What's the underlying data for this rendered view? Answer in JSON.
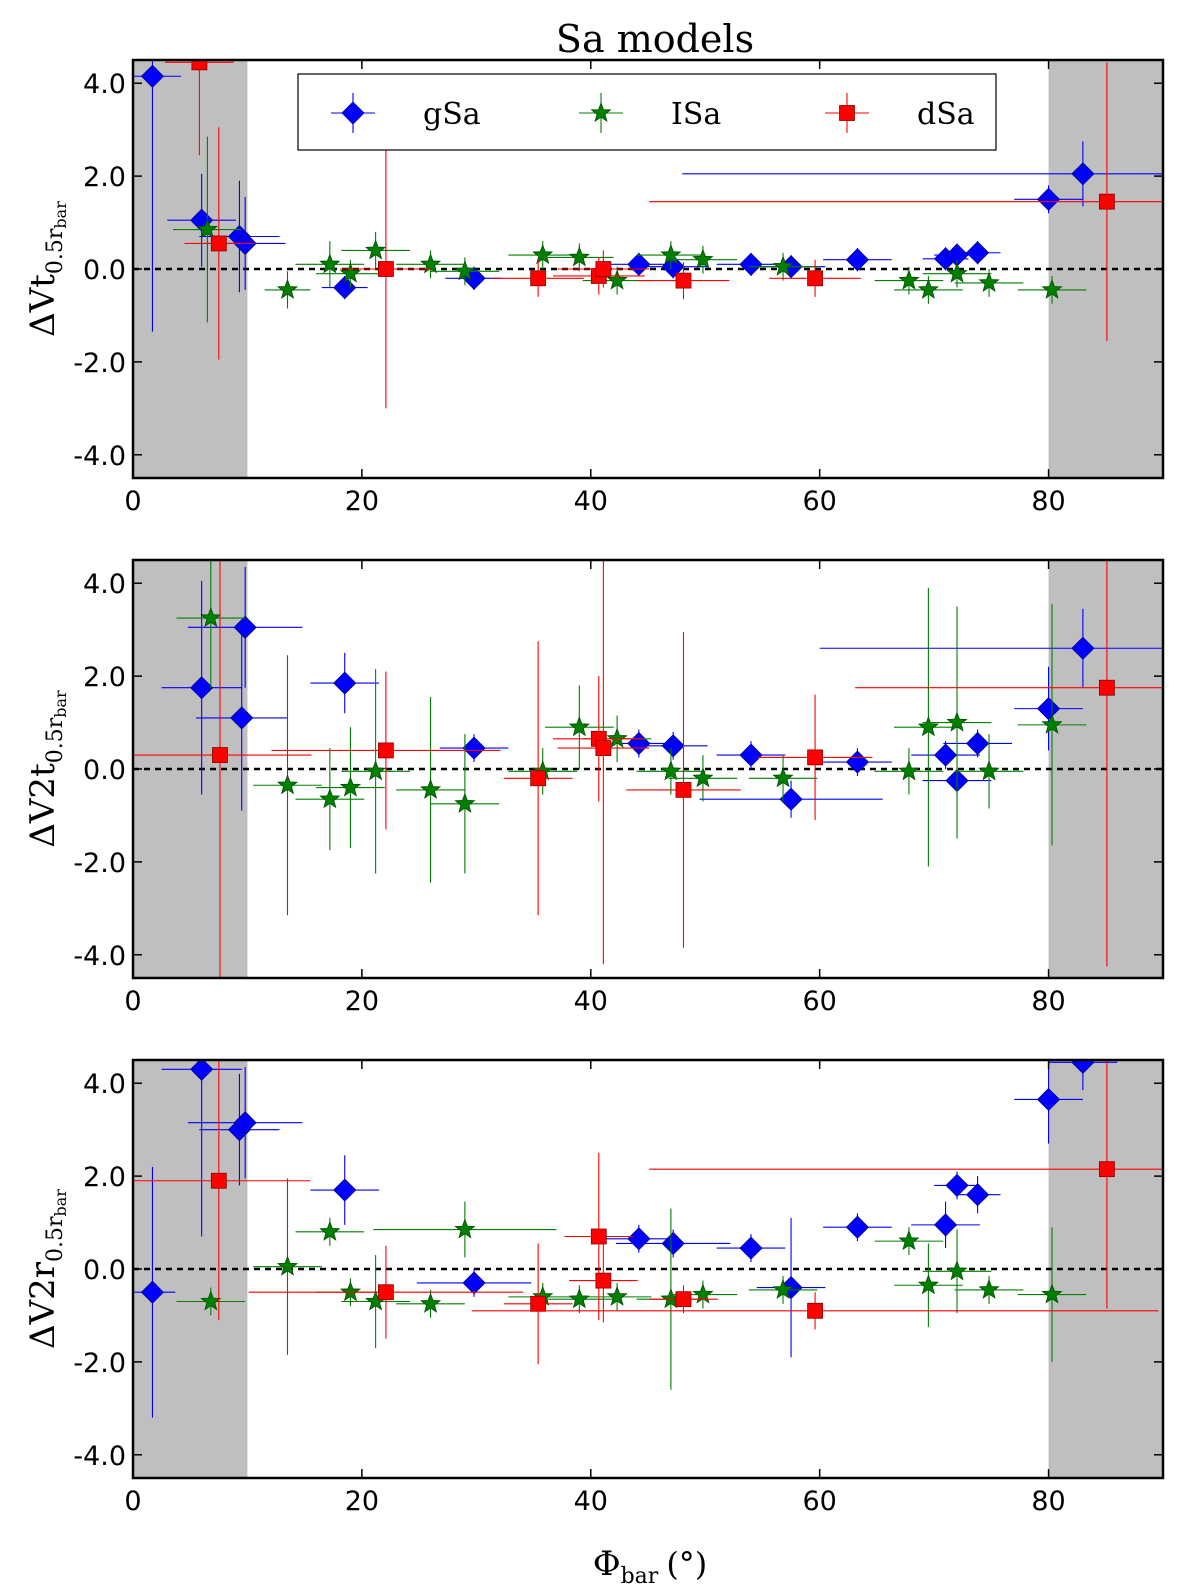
{
  "chart_data": {
    "type": "scatter",
    "title": "Sa models",
    "xlabel": "Φbar (°)",
    "xlabel_main": "Φ",
    "xlabel_sub": "bar",
    "xlabel_unit": "(°)",
    "xlim": [
      0,
      90
    ],
    "ylim": [
      -4.5,
      4.5
    ],
    "xticks": [
      0,
      20,
      40,
      60,
      80
    ],
    "yticks": [
      -4.0,
      -2.0,
      0.0,
      2.0,
      4.0
    ],
    "xtick_labels": [
      "0",
      "20",
      "40",
      "60",
      "80"
    ],
    "ytick_labels": [
      "-4.0",
      "-2.0",
      "0.0",
      "2.0",
      "4.0"
    ],
    "shaded_regions": [
      [
        0,
        10
      ],
      [
        80,
        90
      ]
    ],
    "reference_line_y": 0,
    "legend": {
      "position": "top",
      "entries": [
        {
          "label": "gSa",
          "marker": "diamond",
          "color": "#0000ff"
        },
        {
          "label": "ISa",
          "marker": "star",
          "color": "#007f00"
        },
        {
          "label": "dSa",
          "marker": "square",
          "color": "#ff0000"
        }
      ]
    },
    "panels": [
      {
        "ylabel": "ΔVt0.5rbar",
        "ylabel_main": "ΔVt",
        "ylabel_sub": "0.5r",
        "ylabel_subsub": "bar",
        "series": [
          {
            "name": "gSa",
            "points": [
              [
                1.7,
                4.15,
                2.5,
                5.5
              ],
              [
                6,
                1.05,
                3,
                1
              ],
              [
                9.3,
                0.7,
                3.5,
                1.2
              ],
              [
                9.8,
                0.55,
                3.5,
                1
              ],
              [
                18.5,
                -0.4,
                2,
                0.25
              ],
              [
                29.8,
                -0.2,
                2.5,
                0.25
              ],
              [
                44.2,
                0.1,
                3,
                0.25
              ],
              [
                47.2,
                0.05,
                3,
                0.25
              ],
              [
                54,
                0.1,
                3,
                0.25
              ],
              [
                57.5,
                0.05,
                3,
                0.25
              ],
              [
                63.3,
                0.2,
                3,
                0.25
              ],
              [
                71,
                0.22,
                2,
                0.25
              ],
              [
                72,
                0.3,
                2,
                0.25
              ],
              [
                73.8,
                0.35,
                2,
                0.25
              ],
              [
                80,
                1.5,
                3,
                0.3
              ],
              [
                83,
                2.05,
                35,
                0.7
              ]
            ]
          },
          {
            "name": "ISa",
            "points": [
              [
                6.5,
                0.85,
                3,
                2
              ],
              [
                13.5,
                -0.45,
                2,
                0.4
              ],
              [
                17.2,
                0.1,
                3,
                0.5
              ],
              [
                19,
                -0.1,
                3,
                0.3
              ],
              [
                21.2,
                0.4,
                3,
                0.4
              ],
              [
                26,
                0.1,
                3,
                0.3
              ],
              [
                29,
                -0.05,
                3,
                0.3
              ],
              [
                35.8,
                0.3,
                3,
                0.3
              ],
              [
                39,
                0.25,
                3,
                0.3
              ],
              [
                42.3,
                -0.25,
                3,
                0.3
              ],
              [
                47,
                0.3,
                3,
                0.3
              ],
              [
                49.8,
                0.2,
                3,
                0.3
              ],
              [
                56.8,
                0.05,
                3,
                0.3
              ],
              [
                67.8,
                -0.25,
                3,
                0.3
              ],
              [
                69.5,
                -0.45,
                3,
                0.3
              ],
              [
                72,
                -0.1,
                3,
                0.3
              ],
              [
                74.8,
                -0.3,
                3,
                0.3
              ],
              [
                80.3,
                -0.45,
                3,
                0.3
              ]
            ]
          },
          {
            "name": "dSa",
            "points": [
              [
                5.8,
                4.45,
                3,
                2
              ],
              [
                7.5,
                0.55,
                3,
                2.5
              ],
              [
                22.1,
                0,
                4,
                3
              ],
              [
                35.4,
                -0.2,
                4,
                0.4
              ],
              [
                40.7,
                -0.15,
                4,
                0.4
              ],
              [
                41.1,
                0,
                4,
                0.4
              ],
              [
                48.1,
                -0.25,
                4,
                0.4
              ],
              [
                59.6,
                -0.2,
                4,
                0.4
              ],
              [
                85.1,
                1.45,
                40,
                3
              ]
            ]
          }
        ]
      },
      {
        "ylabel": "ΔV2t0.5rbar",
        "ylabel_main": "ΔV2t",
        "ylabel_sub": "0.5r",
        "ylabel_subsub": "bar",
        "series": [
          {
            "name": "gSa",
            "points": [
              [
                6,
                1.75,
                3.5,
                2.3
              ],
              [
                9.5,
                1.1,
                4,
                2
              ],
              [
                9.8,
                3.05,
                5,
                1.3
              ],
              [
                18.5,
                1.85,
                3,
                0.65
              ],
              [
                29.8,
                0.45,
                3,
                0.3
              ],
              [
                44.2,
                0.55,
                3,
                0.3
              ],
              [
                47.2,
                0.5,
                3,
                0.3
              ],
              [
                54,
                0.3,
                3,
                0.3
              ],
              [
                57.5,
                -0.65,
                8,
                0.4
              ],
              [
                63.3,
                0.15,
                3,
                0.3
              ],
              [
                71,
                0.3,
                3,
                0.3
              ],
              [
                72,
                -0.25,
                3,
                0.3
              ],
              [
                73.8,
                0.55,
                3,
                0.3
              ],
              [
                80,
                1.3,
                3,
                0.9
              ],
              [
                83,
                2.6,
                23,
                0.85
              ]
            ]
          },
          {
            "name": "ISa",
            "points": [
              [
                6.8,
                3.25,
                3,
                1.5
              ],
              [
                13.5,
                -0.35,
                3,
                2.8
              ],
              [
                17.2,
                -0.65,
                3,
                1.1
              ],
              [
                19,
                -0.4,
                3,
                1.3
              ],
              [
                21.2,
                -0.05,
                3,
                2.2
              ],
              [
                26,
                -0.45,
                3,
                2
              ],
              [
                29,
                -0.75,
                3,
                1.5
              ],
              [
                35.8,
                -0.05,
                3,
                0.5
              ],
              [
                39,
                0.9,
                3,
                0.9
              ],
              [
                42.3,
                0.65,
                3,
                0.5
              ],
              [
                47,
                -0.05,
                3,
                0.5
              ],
              [
                49.8,
                -0.2,
                3,
                0.5
              ],
              [
                56.8,
                -0.2,
                3,
                0.5
              ],
              [
                67.8,
                -0.05,
                3,
                0.5
              ],
              [
                69.5,
                0.9,
                3,
                3
              ],
              [
                72,
                1,
                3,
                2.5
              ],
              [
                74.8,
                -0.05,
                3,
                0.8
              ],
              [
                80.3,
                0.95,
                3,
                2.6
              ]
            ]
          },
          {
            "name": "dSa",
            "points": [
              [
                7.6,
                0.3,
                8,
                8
              ],
              [
                22.1,
                0.4,
                10,
                1.7
              ],
              [
                35.4,
                -0.2,
                3,
                2.95
              ],
              [
                40.7,
                0.65,
                4,
                1.35
              ],
              [
                41.1,
                0.45,
                4,
                4.65
              ],
              [
                48.1,
                -0.45,
                5,
                3.4
              ],
              [
                59.6,
                0.25,
                5,
                1.35
              ],
              [
                85.1,
                1.75,
                22,
                6
              ]
            ]
          }
        ]
      },
      {
        "ylabel": "ΔV2r0.5rbar",
        "ylabel_main": "ΔV2r",
        "ylabel_sub": "0.5r",
        "ylabel_subsub": "bar",
        "series": [
          {
            "name": "gSa",
            "points": [
              [
                1.7,
                -0.5,
                2,
                2.7
              ],
              [
                6,
                4.3,
                3.5,
                3.6
              ],
              [
                9.3,
                3,
                3.5,
                1.2
              ],
              [
                9.8,
                3.15,
                5,
                1.2
              ],
              [
                18.5,
                1.7,
                3,
                0.75
              ],
              [
                29.8,
                -0.3,
                5,
                0.3
              ],
              [
                44.2,
                0.65,
                3,
                0.3
              ],
              [
                47.2,
                0.55,
                5,
                0.3
              ],
              [
                54,
                0.45,
                3,
                0.3
              ],
              [
                57.5,
                -0.4,
                3,
                1.5
              ],
              [
                63.3,
                0.9,
                3,
                0.3
              ],
              [
                71,
                0.95,
                3,
                0.5
              ],
              [
                72,
                1.8,
                2,
                0.3
              ],
              [
                73.8,
                1.6,
                2,
                0.4
              ],
              [
                80,
                3.65,
                3,
                0.95
              ],
              [
                83,
                4.45,
                3,
                0.6
              ]
            ]
          },
          {
            "name": "ISa",
            "points": [
              [
                6.8,
                -0.7,
                3,
                0.3
              ],
              [
                13.5,
                0.05,
                3,
                1.9
              ],
              [
                17.2,
                0.8,
                3,
                0.3
              ],
              [
                19,
                -0.5,
                3,
                0.3
              ],
              [
                21.2,
                -0.7,
                3,
                1
              ],
              [
                26,
                -0.75,
                3,
                0.3
              ],
              [
                29,
                0.85,
                8,
                0.6
              ],
              [
                35.8,
                -0.6,
                3,
                0.3
              ],
              [
                39,
                -0.65,
                3,
                0.3
              ],
              [
                42.3,
                -0.6,
                3,
                0.3
              ],
              [
                47,
                -0.65,
                3,
                1.95
              ],
              [
                49.8,
                -0.55,
                3,
                0.3
              ],
              [
                56.8,
                -0.45,
                3,
                0.3
              ],
              [
                67.8,
                0.6,
                3,
                0.3
              ],
              [
                69.5,
                -0.35,
                3,
                0.9
              ],
              [
                72,
                -0.05,
                3,
                0.9
              ],
              [
                74.8,
                -0.45,
                3,
                0.3
              ],
              [
                80.3,
                -0.55,
                3,
                1.45
              ]
            ]
          },
          {
            "name": "dSa",
            "points": [
              [
                7.5,
                1.9,
                8,
                3
              ],
              [
                22.1,
                -0.5,
                12,
                1
              ],
              [
                35.4,
                -0.75,
                3,
                1.3
              ],
              [
                40.7,
                0.7,
                3,
                1.8
              ],
              [
                41.1,
                -0.25,
                3,
                0.9
              ],
              [
                48.1,
                -0.65,
                3,
                0.3
              ],
              [
                59.6,
                -0.9,
                30,
                0.4
              ],
              [
                85.1,
                2.15,
                40,
                3
              ]
            ]
          }
        ]
      }
    ]
  }
}
